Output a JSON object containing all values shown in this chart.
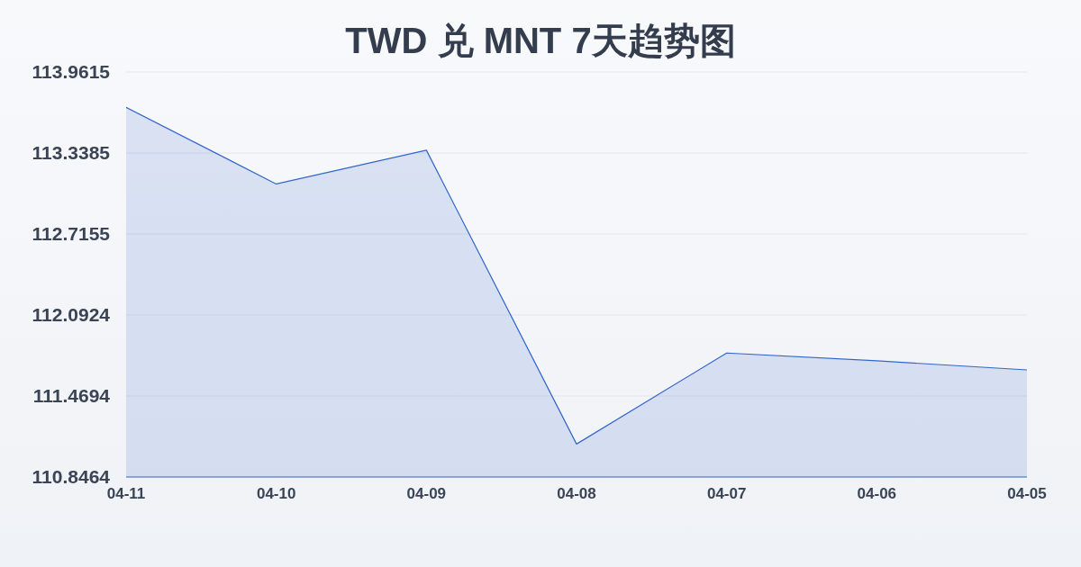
{
  "chart_data": {
    "type": "area",
    "title": "TWD 兑 MNT 7天趋势图",
    "categories": [
      "04-11",
      "04-10",
      "04-09",
      "04-08",
      "04-07",
      "04-06",
      "04-05"
    ],
    "values": [
      113.69,
      113.1,
      113.36,
      111.1,
      111.8,
      111.74,
      111.67
    ],
    "color": "#3366cc",
    "ylim": [
      110.8464,
      113.9615
    ],
    "yticks": [
      110.8464,
      111.4694,
      112.0924,
      112.7155,
      113.3385,
      113.9615
    ],
    "grid": "y"
  }
}
